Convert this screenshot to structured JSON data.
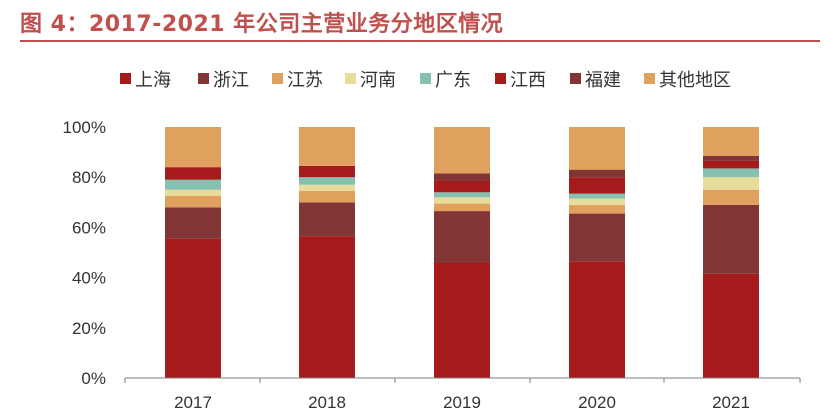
{
  "title": "图 4：2017-2021 年公司主营业务分地区情况",
  "colors": {
    "title": "#c0504d",
    "上海": "#a51a1a",
    "浙江": "#823534",
    "江苏": "#e0a05e",
    "河南": "#e8dc9a",
    "广东": "#85c0b0",
    "江西": "#a51a1a",
    "福建": "#823534",
    "其他地区": "#e0a05e"
  },
  "chart_data": {
    "type": "bar",
    "stacked": true,
    "percent": true,
    "categories": [
      "2017",
      "2018",
      "2019",
      "2020",
      "2021"
    ],
    "series": [
      {
        "name": "上海",
        "values": [
          55.5,
          56.5,
          46,
          46.5,
          41.5
        ]
      },
      {
        "name": "浙江",
        "values": [
          12.5,
          13.5,
          20.5,
          19,
          27.5
        ]
      },
      {
        "name": "江苏",
        "values": [
          4.5,
          4.5,
          3,
          3.5,
          6
        ]
      },
      {
        "name": "河南",
        "values": [
          2.5,
          2.5,
          2.5,
          2.5,
          5
        ]
      },
      {
        "name": "广东",
        "values": [
          4,
          3,
          2,
          2,
          3.5
        ]
      },
      {
        "name": "江西",
        "values": [
          5,
          4.5,
          4.5,
          6.5,
          3
        ]
      },
      {
        "name": "福建",
        "values": [
          0,
          0,
          3,
          3,
          2
        ]
      },
      {
        "name": "其他地区",
        "values": [
          16,
          15.5,
          18.5,
          17,
          11.5
        ]
      }
    ],
    "yticks": [
      "0%",
      "20%",
      "40%",
      "60%",
      "80%",
      "100%"
    ],
    "ylim": [
      0,
      100
    ],
    "legend": "top",
    "grid": false
  }
}
